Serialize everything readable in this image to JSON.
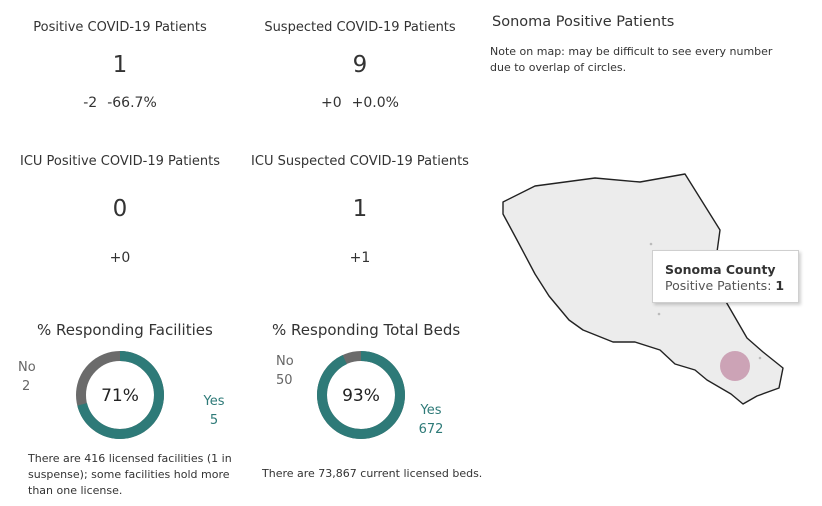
{
  "kpis": {
    "positive": {
      "title": "Positive COVID-19 Patients",
      "value": "1",
      "change": "-2",
      "change_pct": "-66.7%"
    },
    "suspected": {
      "title": "Suspected COVID-19 Patients",
      "value": "9",
      "change": "+0",
      "change_pct": "+0.0%"
    },
    "icu_positive": {
      "title": "ICU Positive COVID-19 Patients",
      "value": "0",
      "change": "+0"
    },
    "icu_suspected": {
      "title": "ICU Suspected COVID-19 Patients",
      "value": "1",
      "change": "+1"
    }
  },
  "facilities": {
    "title": "% Responding Facilities",
    "percent": 71,
    "percent_label": "71%",
    "no_label": "No",
    "no_value": "2",
    "yes_label": "Yes",
    "yes_value": "5",
    "note": "There are 416 licensed facilities (1 in suspense); some facilities hold more than one license."
  },
  "beds": {
    "title": "% Responding Total Beds",
    "percent": 93,
    "percent_label": "93%",
    "no_label": "No",
    "no_value": "50",
    "yes_label": "Yes",
    "yes_value": "672",
    "note": "There are 73,867 current licensed beds."
  },
  "map": {
    "title": "Sonoma Positive Patients",
    "note": "Note on map: may be difficult to see every number due to overlap of circles.",
    "tooltip": {
      "county": "Sonoma County",
      "label": "Positive Patients:",
      "value": "1"
    }
  },
  "colors": {
    "yes": "#2e7a78",
    "no": "#6b6b6b",
    "county_fill": "#ececec",
    "bubble": "#c99bb0"
  }
}
